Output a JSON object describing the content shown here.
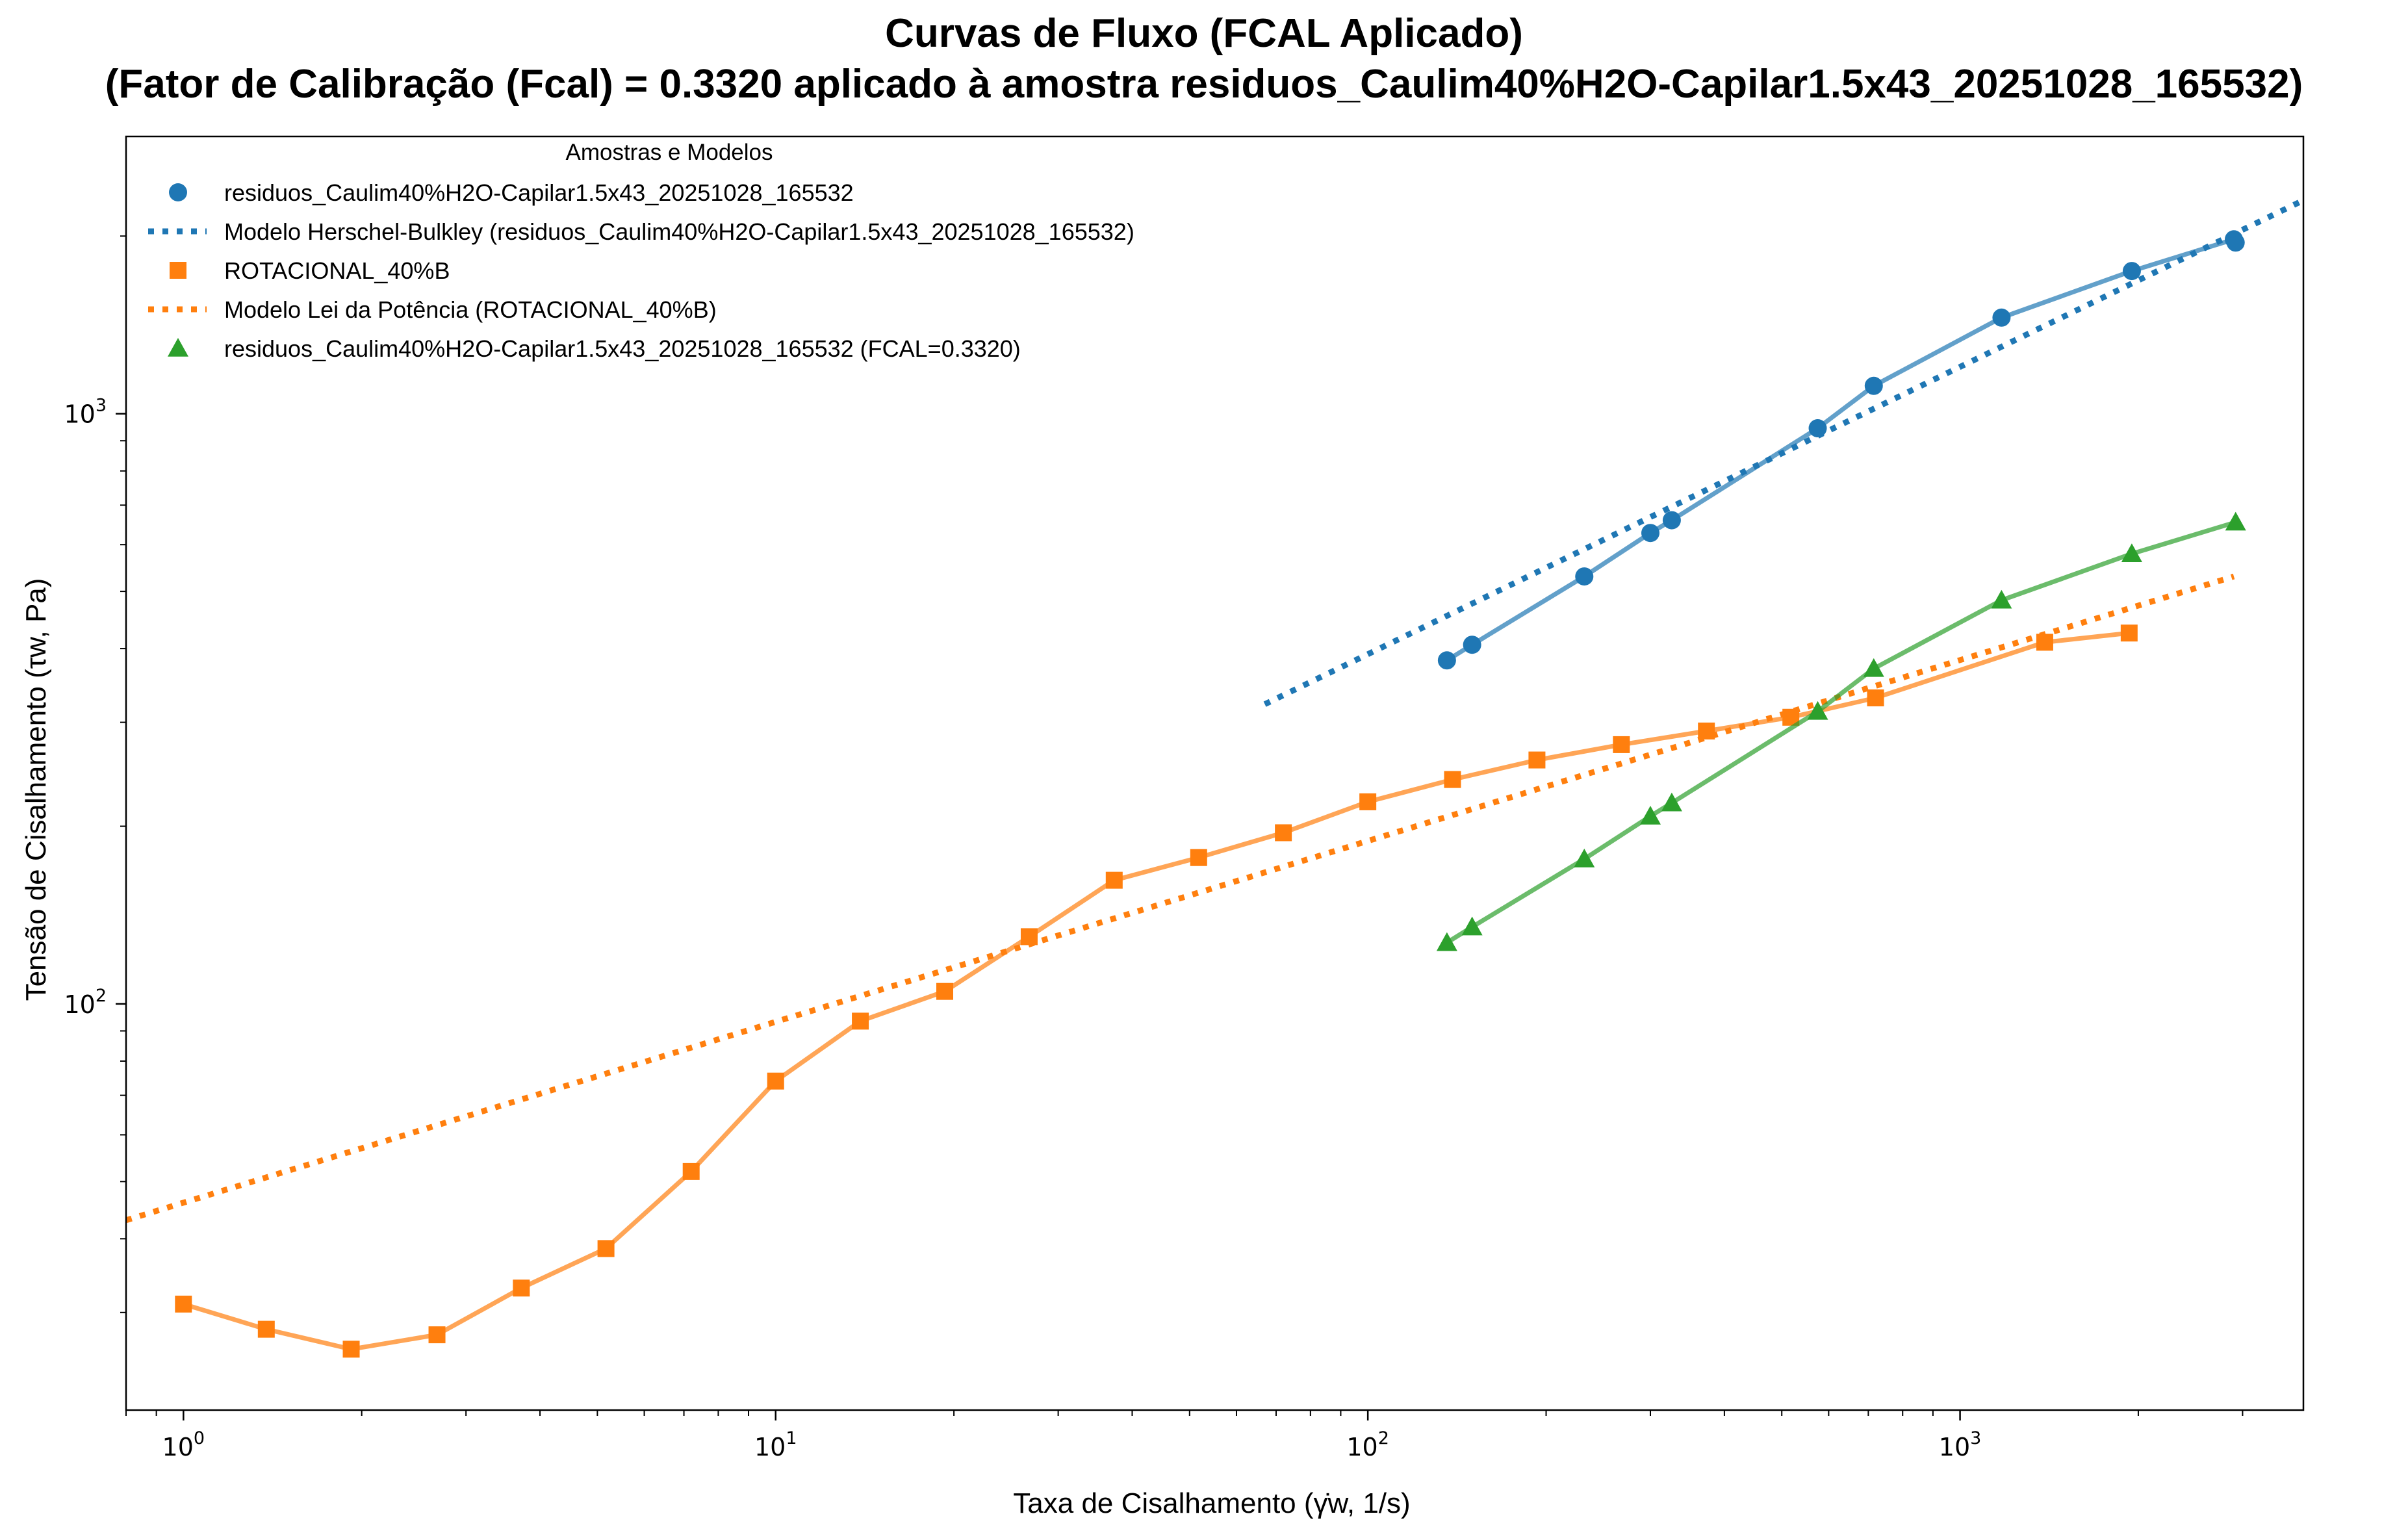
{
  "chart_data": {
    "type": "line",
    "title": "Curvas de Fluxo (FCAL Aplicado)",
    "subtitle": "(Fator de Calibração (Fcal) = 0.3320 aplicado à amostra residuos_Caulim40%H2O-Capilar1.5x43_20251028_165532)",
    "xlabel": "Taxa de Cisalhamento (γ̇w, 1/s)",
    "ylabel": "Tensão de Cisalhamento (τw, Pa)",
    "xscale": "log",
    "yscale": "log",
    "xlim": [
      0.8,
      3800
    ],
    "ylim": [
      20.5,
      2950
    ],
    "x_ticks": [
      1,
      10,
      100,
      1000
    ],
    "x_tick_labels": [
      {
        "base": "10",
        "exp": "0"
      },
      {
        "base": "10",
        "exp": "1"
      },
      {
        "base": "10",
        "exp": "2"
      },
      {
        "base": "10",
        "exp": "3"
      }
    ],
    "y_ticks": [
      100,
      1000
    ],
    "y_tick_labels": [
      {
        "base": "10",
        "exp": "2"
      },
      {
        "base": "10",
        "exp": "3"
      }
    ],
    "grid": false,
    "legend": {
      "title": "Amostras e Modelos",
      "position": "top-left"
    },
    "series": [
      {
        "name": "residuos_Caulim40%H2O-Capilar1.5x43_20251028_165532",
        "kind": "data",
        "marker": "circle",
        "color": "#1f77b4",
        "x": [
          136,
          150,
          232,
          300,
          326,
          575,
          715,
          1175,
          1950,
          2900,
          2920
        ],
        "y": [
          382,
          406,
          530,
          628,
          660,
          945,
          1115,
          1455,
          1745,
          1975,
          1950
        ]
      },
      {
        "name": "Modelo Herschel-Bulkley (residuos_Caulim40%H2O-Capilar1.5x43_20251028_165532)",
        "kind": "model",
        "line": "dotted",
        "color": "#1f77b4",
        "x": [
          67,
          3800
        ],
        "y": [
          322,
          2300
        ]
      },
      {
        "name": "ROTACIONAL_40%B",
        "kind": "data",
        "marker": "square",
        "color": "#ff7f0e",
        "x": [
          1.0,
          1.38,
          1.92,
          2.68,
          3.72,
          5.17,
          7.2,
          10.0,
          13.9,
          19.3,
          26.8,
          37.3,
          51.8,
          72,
          100,
          139,
          193,
          268,
          373,
          518,
          720,
          1390,
          1930
        ],
        "y": [
          31,
          28.1,
          26.0,
          27.5,
          33,
          38.5,
          52,
          74,
          93.5,
          105,
          130,
          162,
          177,
          195,
          220,
          240,
          259,
          275,
          290,
          306,
          330,
          410,
          425
        ]
      },
      {
        "name": "Modelo Lei da Potência (ROTACIONAL_40%B)",
        "kind": "model",
        "line": "dotted",
        "color": "#ff7f0e",
        "x": [
          0.8,
          2900
        ],
        "y": [
          43,
          530
        ]
      },
      {
        "name": "residuos_Caulim40%H2O-Capilar1.5x43_20251028_165532 (FCAL=0.3320)",
        "kind": "data",
        "marker": "triangle",
        "color": "#2ca02c",
        "x": [
          136,
          150,
          232,
          300,
          326,
          575,
          715,
          1175,
          1950,
          2920
        ],
        "y": [
          127,
          135,
          176,
          208,
          219,
          313,
          370,
          483,
          579,
          655
        ]
      }
    ]
  }
}
